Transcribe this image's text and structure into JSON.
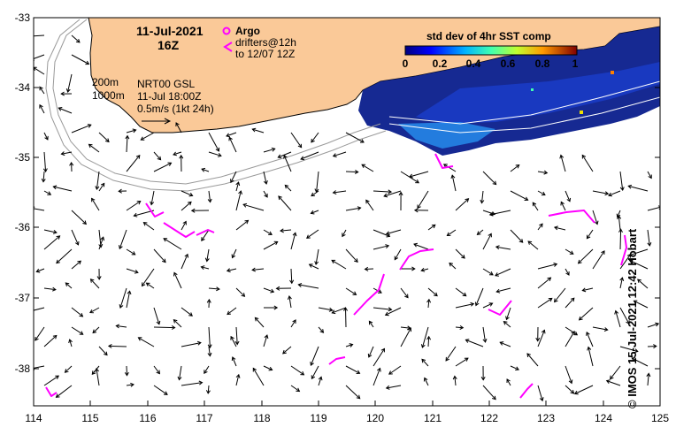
{
  "date": "11-Jul-2021",
  "time": "16Z",
  "legend": {
    "argo_label": "Argo",
    "drifters_label": "drifters@12h",
    "drifters_range": "to 12/07 12Z",
    "isobath_200": "200m",
    "isobath_1000": "1000m",
    "product": "NRT00 GSL",
    "product_time": "11-Jul 18:00Z",
    "scale_label": "0.5m/s (1kt 24h)"
  },
  "colorbar": {
    "title": "std dev of 4hr SST comp",
    "ticks": [
      "0",
      "0.2",
      "0.4",
      "0.6",
      "0.8",
      "1"
    ]
  },
  "credit": "IMOS 15-Jul-2021 12:42 Hobart",
  "copyright_symbol": "©",
  "axes": {
    "lon_ticks": [
      "114",
      "115",
      "116",
      "117",
      "118",
      "119",
      "120",
      "121",
      "122",
      "123",
      "124",
      "125"
    ],
    "lat_ticks": [
      "-33",
      "-34",
      "-35",
      "-36",
      "-37",
      "-38"
    ]
  },
  "colors": {
    "land": "#fac998",
    "ocean": "#ffffff",
    "sst_deep": "#0a1e8c",
    "drifter": "#ff00ff",
    "isobath": "#9a9a9a"
  }
}
